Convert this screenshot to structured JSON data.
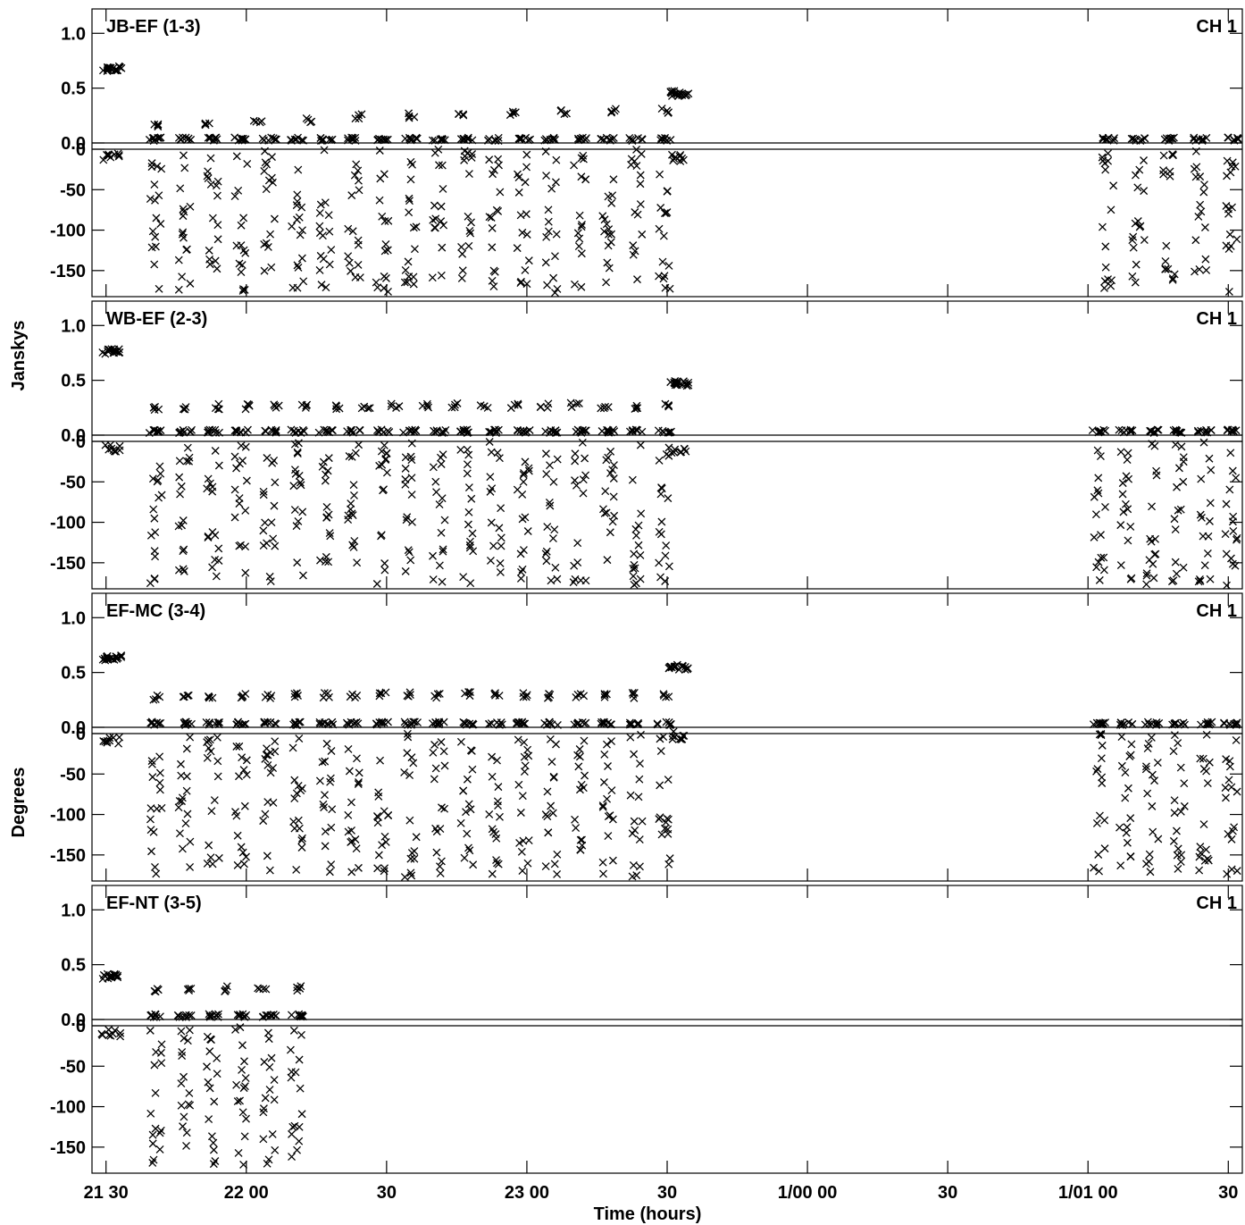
{
  "figure": {
    "left_axis_title": "Jansky s",
    "left_axis_title_top": "Janskys",
    "left_axis_title_bottom": "Degrees",
    "x_axis_title": "Time (hours)"
  },
  "chart_data": {
    "type": "scatter",
    "xlabel": "Time (hours)",
    "amplitude_label": "Janskys",
    "phase_label": "Degrees",
    "x_range_hours": [
      21.45,
      25.55
    ],
    "x_ticks": [
      {
        "value": 21.5,
        "label": "21 30"
      },
      {
        "value": 22.0,
        "label": "22 00"
      },
      {
        "value": 22.5,
        "label": "30"
      },
      {
        "value": 23.0,
        "label": "23 00"
      },
      {
        "value": 23.5,
        "label": "30"
      },
      {
        "value": 24.0,
        "label": "1/00 00"
      },
      {
        "value": 24.5,
        "label": "30"
      },
      {
        "value": 25.0,
        "label": "1/01 00"
      },
      {
        "value": 25.5,
        "label": "30"
      }
    ],
    "amplitude_ylim": [
      0,
      1.1
    ],
    "amplitude_ticks": [
      {
        "value": 1.0,
        "label": "1.0"
      },
      {
        "value": 0.5,
        "label": "0.5"
      },
      {
        "value": 0.0,
        "label": "0.0"
      }
    ],
    "phase_ylim": [
      -180,
      0
    ],
    "phase_ticks": [
      {
        "value": 0,
        "label": "0"
      },
      {
        "value": -50,
        "label": "-50"
      },
      {
        "value": -100,
        "label": "-100"
      },
      {
        "value": -150,
        "label": "-150"
      }
    ],
    "panels": [
      {
        "baseline": "JB-EF (1-3)",
        "channel": "CH 1",
        "calibrator": {
          "x": [
            21.5,
            21.52,
            21.54
          ],
          "amp": 0.68,
          "phase": -10
        },
        "late_calibrator": {
          "x": [
            23.52,
            23.54,
            23.56
          ],
          "amp": 0.45,
          "phase": -10
        },
        "target_start": 21.68,
        "target_end": 23.49,
        "target_amp": [
          0.17,
          0.18,
          0.21,
          0.21,
          0.24,
          0.25,
          0.26,
          0.27,
          0.28,
          0.29,
          0.29
        ],
        "target2_start": 25.07,
        "target2_end": 25.51
      },
      {
        "baseline": "WB-EF (2-3)",
        "channel": "CH 1",
        "calibrator": {
          "x": [
            21.5,
            21.52,
            21.54
          ],
          "amp": 0.76,
          "phase": -8
        },
        "late_calibrator": {
          "x": [
            23.52,
            23.54,
            23.56
          ],
          "amp": 0.47,
          "phase": -10
        },
        "target_start": 21.68,
        "target_end": 23.49,
        "target_amp": [
          0.24,
          0.25,
          0.26,
          0.26,
          0.26,
          0.26,
          0.26,
          0.26,
          0.27,
          0.27,
          0.27,
          0.27,
          0.27,
          0.27,
          0.27,
          0.26,
          0.26,
          0.26
        ],
        "target2_start": 25.04,
        "target2_end": 25.51
      },
      {
        "baseline": "EF-MC (3-4)",
        "channel": "CH 1",
        "calibrator": {
          "x": [
            21.5,
            21.52,
            21.54
          ],
          "amp": 0.63,
          "phase": -10
        },
        "late_calibrator": {
          "x": [
            23.52,
            23.54,
            23.56
          ],
          "amp": 0.55,
          "phase": -3
        },
        "target_start": 21.68,
        "target_end": 23.49,
        "target_amp": [
          0.27,
          0.29,
          0.29,
          0.29,
          0.28,
          0.3,
          0.29,
          0.28,
          0.3,
          0.3,
          0.29,
          0.3,
          0.29,
          0.3,
          0.29,
          0.28,
          0.29,
          0.29,
          0.29
        ],
        "target2_start": 25.04,
        "target2_end": 25.51
      },
      {
        "baseline": "EF-NT (3-5)",
        "channel": "CH 1",
        "calibrator": {
          "x": [
            21.5,
            21.52,
            21.54
          ],
          "amp": 0.39,
          "phase": -10
        },
        "late_calibrator": null,
        "target_start": 21.68,
        "target_end": 22.18,
        "target_amp": [
          0.27,
          0.28,
          0.28,
          0.28,
          0.28
        ],
        "target2_start": null,
        "target2_end": null
      }
    ]
  }
}
